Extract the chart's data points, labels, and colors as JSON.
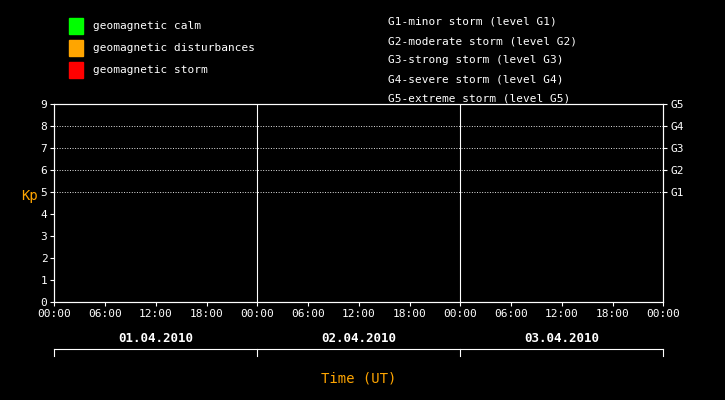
{
  "background_color": "#000000",
  "plot_bg_color": "#000000",
  "text_color": "#FFFFFF",
  "axis_color": "#FFFFFF",
  "tick_color": "#FFFFFF",
  "grid_color": "#FFFFFF",
  "ylabel": "Kp",
  "ylabel_color": "#FFA500",
  "xlabel": "Time (UT)",
  "xlabel_color": "#FFA500",
  "ylim": [
    0,
    9
  ],
  "yticks": [
    0,
    1,
    2,
    3,
    4,
    5,
    6,
    7,
    8,
    9
  ],
  "days": [
    "01.04.2010",
    "02.04.2010",
    "03.04.2010"
  ],
  "xtick_labels": [
    "00:00",
    "06:00",
    "12:00",
    "18:00",
    "00:00",
    "06:00",
    "12:00",
    "18:00",
    "00:00",
    "06:00",
    "12:00",
    "18:00",
    "00:00"
  ],
  "day_separators": [
    24,
    48
  ],
  "total_hours": 72,
  "legend_items": [
    {
      "label": "geomagnetic calm",
      "color": "#00FF00"
    },
    {
      "label": "geomagnetic disturbances",
      "color": "#FFA500"
    },
    {
      "label": "geomagnetic storm",
      "color": "#FF0000"
    }
  ],
  "storm_levels": [
    {
      "label": "G1-minor storm (level G1)"
    },
    {
      "label": "G2-moderate storm (level G2)"
    },
    {
      "label": "G3-strong storm (level G3)"
    },
    {
      "label": "G4-severe storm (level G4)"
    },
    {
      "label": "G5-extreme storm (level G5)"
    }
  ],
  "right_labels": [
    "G1",
    "G2",
    "G3",
    "G4",
    "G5"
  ],
  "right_label_kp": [
    5,
    6,
    7,
    8,
    9
  ],
  "dotted_kp": [
    5,
    6,
    7,
    8,
    9
  ],
  "font_family": "monospace",
  "font_size": 8,
  "legend_font_size": 8,
  "storm_text_font_size": 8
}
